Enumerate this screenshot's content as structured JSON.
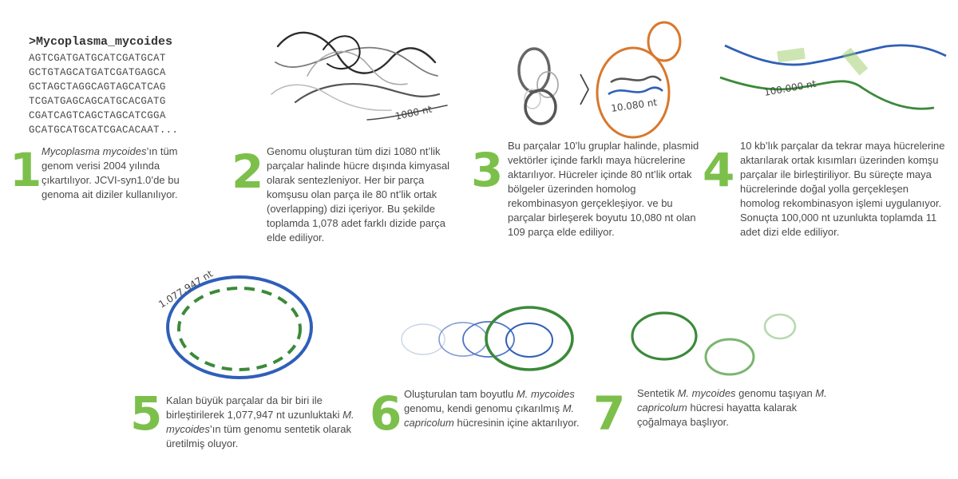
{
  "sequence": {
    "header": ">Mycoplasma_mycoides",
    "lines": [
      "AGTCGATGATGCATCGATGCAT",
      "GCTGTAGCATGATCGATGAGCA",
      "GCTAGCTAGGCAGTAGCATCAG",
      "TCGATGAGCAGCATGCACGATG",
      "CGATCAGTCAGCTAGCATCGGA",
      "GCATGCATGCATCGACACAAT..."
    ]
  },
  "labels": {
    "fragment_length": "1080 nt",
    "vector_length": "10.080 nt",
    "assembly_length": "100.000 nt",
    "genome_length": "1.077.947 nt"
  },
  "steps": [
    {
      "num": "1",
      "pre": "",
      "em": "Mycoplasma mycoides",
      "post": "’ın tüm genom verisi 2004 yılında çıkartılıyor. JCVI-syn1.0’de bu genoma ait diziler kullanılıyor."
    },
    {
      "num": "2",
      "pre": "Genomu oluşturan tüm dizi 1080 nt’lik parçalar halinde hücre dışında kimyasal olarak sentezleniyor. Her bir parça komşusu olan parça ile 80 nt’lik ortak (overlapping) dizi içeriyor. Bu şekilde toplamda 1,078 adet farklı dizide parça elde ediliyor.",
      "em": "",
      "post": ""
    },
    {
      "num": "3",
      "pre": "Bu parçalar 10’lu gruplar halinde, plasmid vektörler içinde farklı maya hücrelerine aktarılıyor. Hücreler içinde 80 nt’lik ortak bölgeler üzerinden homolog rekombinasyon gerçekleşiyor. ve bu parçalar birleşerek boyutu 10,080 nt olan 109 parça elde ediliyor.",
      "em": "",
      "post": ""
    },
    {
      "num": "4",
      "pre": "10 kb’lık parçalar da tekrar maya hücrelerine aktarılarak ortak kısımları üzerinden komşu parçalar ile birleştiriliyor. Bu süreçte maya hücrelerinde doğal yolla gerçekleşen homolog rekombinasyon işlemi uygulanıyor. Sonuçta 100,000 nt uzunlukta toplamda 11 adet dizi elde ediliyor.",
      "em": "",
      "post": ""
    },
    {
      "num": "5",
      "pre": "Kalan büyük parçalar da bir biri ile birleştirilerek 1,077,947 nt uzunluktaki ",
      "em": "M. mycoides",
      "post": "’ın tüm genomu sentetik olarak üretilmiş oluyor."
    },
    {
      "num": "6",
      "pre": "Oluşturulan tam boyutlu ",
      "em": "M. mycoides",
      "post": " genomu, kendi genomu çıkarılmış ",
      "em2": "M. capricolum",
      "post2": " hücresinin içine aktarılıyor."
    },
    {
      "num": "7",
      "pre": "Sentetik ",
      "em": "M. mycoides",
      "post": " genomu taşıyan ",
      "em2": "M. capricolum",
      "post2": " hücresi hayatta kalarak çoğalmaya başlıyor."
    }
  ],
  "colors": {
    "accent_green": "#7cc04b",
    "dark_green": "#3b8a3a",
    "blue": "#2f5fb8",
    "orange": "#d9782d",
    "gray": "#666666"
  }
}
